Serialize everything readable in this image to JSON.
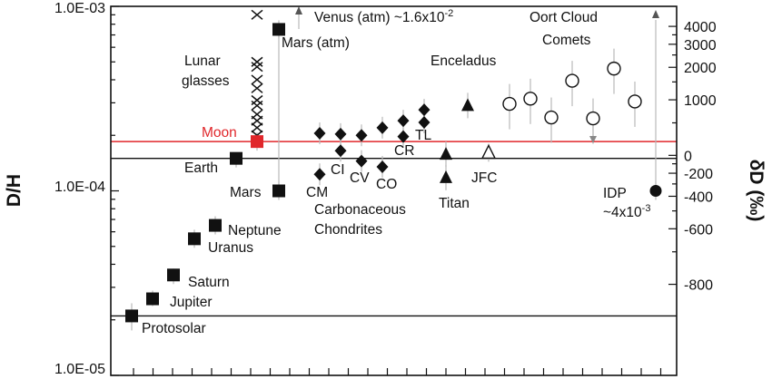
{
  "chart_data": {
    "type": "scatter",
    "title": "",
    "ylabel": "D/H",
    "ylabel_right": "δD (‰)",
    "y_scale": "log",
    "ylim": [
      1e-05,
      0.001
    ],
    "y_ticks": [
      "1.0E-03",
      "1.0E-04",
      "1.0E-05"
    ],
    "right_ticks": [
      "4000",
      "3000",
      "2000",
      "1000",
      "0",
      "-200",
      "-400",
      "-600",
      "-800"
    ],
    "grid": false,
    "reference_lines": [
      {
        "name": "Moon",
        "y": 0.000185,
        "color": "#e0262a"
      },
      {
        "name": "Earth",
        "y": 0.00015,
        "color": "#111111"
      },
      {
        "name": "Protosolar",
        "y": 2.1e-05,
        "color": "#111111"
      }
    ],
    "groups": [
      {
        "name": "Protosolar",
        "marker": "square",
        "points": [
          {
            "y": 2.1e-05
          }
        ]
      },
      {
        "name": "Jupiter",
        "marker": "square",
        "points": [
          {
            "y": 2.6e-05
          }
        ]
      },
      {
        "name": "Saturn",
        "marker": "square",
        "points": [
          {
            "y": 3.5e-05
          }
        ]
      },
      {
        "name": "Uranus",
        "marker": "square",
        "points": [
          {
            "y": 5.5e-05
          }
        ]
      },
      {
        "name": "Neptune",
        "marker": "square",
        "points": [
          {
            "y": 6.5e-05
          }
        ]
      },
      {
        "name": "Earth",
        "marker": "square",
        "points": [
          {
            "y": 0.00015
          }
        ]
      },
      {
        "name": "Lunar glasses",
        "marker": "x",
        "points": [
          {
            "y": 0.0009
          },
          {
            "y": 0.0005
          },
          {
            "y": 0.00047
          },
          {
            "y": 0.0004
          },
          {
            "y": 0.00036
          },
          {
            "y": 0.00031
          },
          {
            "y": 0.00029
          },
          {
            "y": 0.00026
          },
          {
            "y": 0.00024
          },
          {
            "y": 0.00022
          },
          {
            "y": 0.0002
          }
        ]
      },
      {
        "name": "Moon",
        "marker": "square",
        "color": "#e0262a",
        "points": [
          {
            "y": 0.000185
          }
        ]
      },
      {
        "name": "Mars",
        "marker": "square",
        "points": [
          {
            "y": 0.0001
          }
        ]
      },
      {
        "name": "Mars (atm)",
        "marker": "square",
        "points": [
          {
            "y": 0.00075
          }
        ]
      },
      {
        "name": "Carbonaceous Chondrites",
        "marker": "diamond",
        "points": [
          {
            "y": 0.000123
          },
          {
            "y": 0.000205
          },
          {
            "y": 0.000165
          },
          {
            "y": 0.000203
          },
          {
            "y": 0.000145
          },
          {
            "y": 0.0002
          },
          {
            "y": 0.000135
          },
          {
            "y": 0.00022
          },
          {
            "y": 0.00024
          },
          {
            "y": 0.000197
          },
          {
            "y": 0.000275
          },
          {
            "y": 0.000235
          }
        ]
      },
      {
        "name": "Titan",
        "marker": "triangle",
        "points": [
          {
            "y": 0.000158
          },
          {
            "y": 0.000118
          }
        ]
      },
      {
        "name": "Enceladus",
        "marker": "triangle",
        "points": [
          {
            "y": 0.00029
          }
        ]
      },
      {
        "name": "JFC",
        "marker": "triangle-open",
        "points": [
          {
            "y": 0.000161
          }
        ]
      },
      {
        "name": "Oort Cloud Comets",
        "marker": "circle-open",
        "points": [
          {
            "y": 0.000296
          },
          {
            "y": 0.000316
          },
          {
            "y": 0.00025
          },
          {
            "y": 0.000395
          },
          {
            "y": 0.000247
          },
          {
            "y": 0.00046
          },
          {
            "y": 0.000305
          }
        ]
      },
      {
        "name": "IDP",
        "marker": "circle",
        "points": [
          {
            "y": 0.0001
          }
        ]
      }
    ],
    "annotations": [
      {
        "text": "Venus (atm) ~1.6x10",
        "sup": "-2"
      },
      {
        "text": "Mars (atm)"
      },
      {
        "text": "Oort Cloud"
      },
      {
        "text": "Comets"
      },
      {
        "text": "Enceladus"
      },
      {
        "text": "Lunar"
      },
      {
        "text": "glasses"
      },
      {
        "text": "Moon"
      },
      {
        "text": "Earth"
      },
      {
        "text": "Mars"
      },
      {
        "text": "CM"
      },
      {
        "text": "CI"
      },
      {
        "text": "CV"
      },
      {
        "text": "CO"
      },
      {
        "text": "CR"
      },
      {
        "text": "TL"
      },
      {
        "text": "JFC"
      },
      {
        "text": "Titan"
      },
      {
        "text": "Carbonaceous"
      },
      {
        "text": "Chondrites"
      },
      {
        "text": "Neptune"
      },
      {
        "text": "Uranus"
      },
      {
        "text": "Saturn"
      },
      {
        "text": "Jupiter"
      },
      {
        "text": "Protosolar"
      },
      {
        "text": "IDP"
      },
      {
        "text": "~4x10",
        "sup": "-3"
      }
    ]
  }
}
